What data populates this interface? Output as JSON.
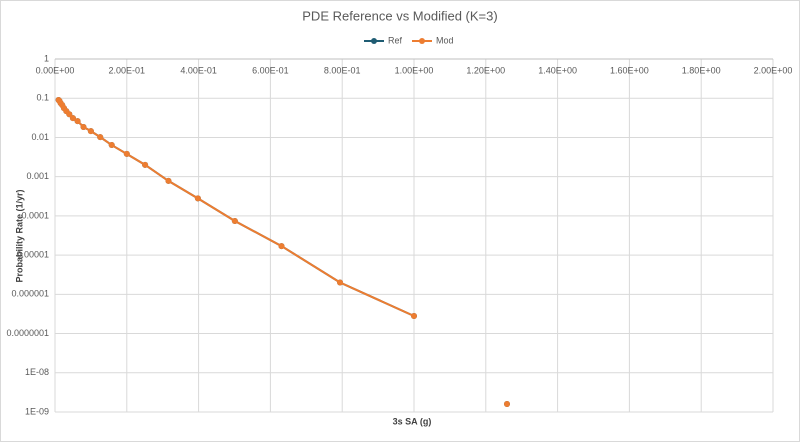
{
  "chart_data": {
    "type": "line",
    "title": "PDE Reference vs Modified (K=3)",
    "x_label": "3s SA (g)",
    "y_label": "Probability Rate (1/yr)",
    "log_y": true,
    "grid": true,
    "legend": "top",
    "x": [
      0.01,
      0.0126,
      0.0158,
      0.02,
      0.025,
      0.0316,
      0.0398,
      0.05,
      0.063,
      0.0794,
      0.1,
      0.126,
      0.158,
      0.2,
      0.251,
      0.316,
      0.398,
      0.501,
      0.631,
      0.794,
      1.0,
      1.122,
      1.259
    ],
    "series": [
      {
        "name": "Ref",
        "color": "#1f5c73",
        "values": [
          0.09,
          0.085,
          0.075,
          0.067,
          0.056,
          0.047,
          0.039,
          0.031,
          0.026,
          0.0185,
          0.0145,
          0.0102,
          0.0064,
          0.0038,
          0.002,
          0.00078,
          0.00028,
          7.4e-05,
          1.7e-05,
          2e-06,
          2.8e-07,
          null,
          1.6e-09
        ]
      },
      {
        "name": "Mod",
        "color": "#ed7d31",
        "values": [
          0.09,
          0.085,
          0.075,
          0.067,
          0.056,
          0.047,
          0.039,
          0.031,
          0.026,
          0.0185,
          0.0145,
          0.0102,
          0.0064,
          0.0038,
          0.002,
          0.00078,
          0.00028,
          7.4e-05,
          1.7e-05,
          2e-06,
          2.8e-07,
          null,
          1.6e-09
        ]
      }
    ],
    "xlim": [
      0,
      2
    ],
    "xticks": [
      {
        "value": 0,
        "label": "0.00E+00"
      },
      {
        "value": 0.2,
        "label": "2.00E-01"
      },
      {
        "value": 0.4,
        "label": "4.00E-01"
      },
      {
        "value": 0.6,
        "label": "6.00E-01"
      },
      {
        "value": 0.8,
        "label": "8.00E-01"
      },
      {
        "value": 1,
        "label": "1.00E+00"
      },
      {
        "value": 1.2,
        "label": "1.20E+00"
      },
      {
        "value": 1.4,
        "label": "1.40E+00"
      },
      {
        "value": 1.6,
        "label": "1.60E+00"
      },
      {
        "value": 1.8,
        "label": "1.80E+00"
      },
      {
        "value": 2,
        "label": "2.00E+00"
      }
    ],
    "ylim": [
      1e-09,
      1
    ],
    "yticks": [
      1,
      0.1,
      0.01,
      0.001,
      0.0001,
      {
        "value": 1e-05,
        "label": "0.00001"
      },
      {
        "value": 1e-06,
        "label": "0.000001"
      },
      {
        "value": 1e-07,
        "label": "0.0000001"
      },
      {
        "value": 1e-08,
        "label": "1E-08"
      },
      {
        "value": 1e-09,
        "label": "1E-09"
      }
    ]
  }
}
